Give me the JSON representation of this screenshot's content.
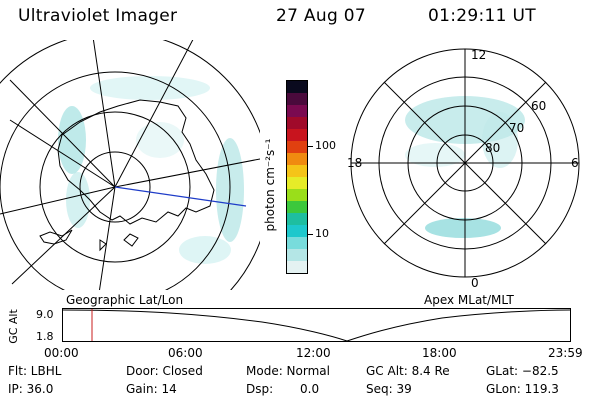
{
  "header": {
    "instrument": "Ultraviolet Imager",
    "date": "27 Aug 07",
    "time": "01:29:11 UT"
  },
  "colorbar": {
    "label": "photon cm⁻²s⁻¹",
    "ticks": [
      "100",
      "10"
    ],
    "colors": [
      "#0a0a1e",
      "#4a0a3c",
      "#7a0a50",
      "#a00a2a",
      "#c8141e",
      "#e04010",
      "#f08a10",
      "#f5c418",
      "#e6ec28",
      "#9ade1a",
      "#3cc83c",
      "#1ebea0",
      "#1ec8cc",
      "#78dcdc",
      "#b4e6e6",
      "#e4f2f2"
    ]
  },
  "left_map": {
    "caption": "Geographic Lat/Lon",
    "aurora_color": "#3cc8c0"
  },
  "right_map": {
    "caption": "Apex MLat/MLT",
    "labels": {
      "top": "12",
      "bottom": "0",
      "left": "18",
      "right": "6",
      "lat60": "60",
      "lat70": "70",
      "lat80": "80"
    }
  },
  "altitude_plot": {
    "ylabel": "GC Alt",
    "yticks": [
      "9.0",
      "1.8"
    ],
    "xticks": [
      "00:00",
      "06:00",
      "12:00",
      "18:00",
      "23:59"
    ],
    "marker_color": "#c81e1e"
  },
  "info": {
    "row1": [
      "Flt: LBHL",
      "Door: Closed",
      "Mode: Normal",
      "GC Alt: 8.4 Re",
      "GLat: −82.5"
    ],
    "row2": [
      "IP: 36.0",
      "Gain: 14",
      "Dsp:",
      "0.0",
      "Seq: 39",
      "GLon: 119.3"
    ]
  }
}
